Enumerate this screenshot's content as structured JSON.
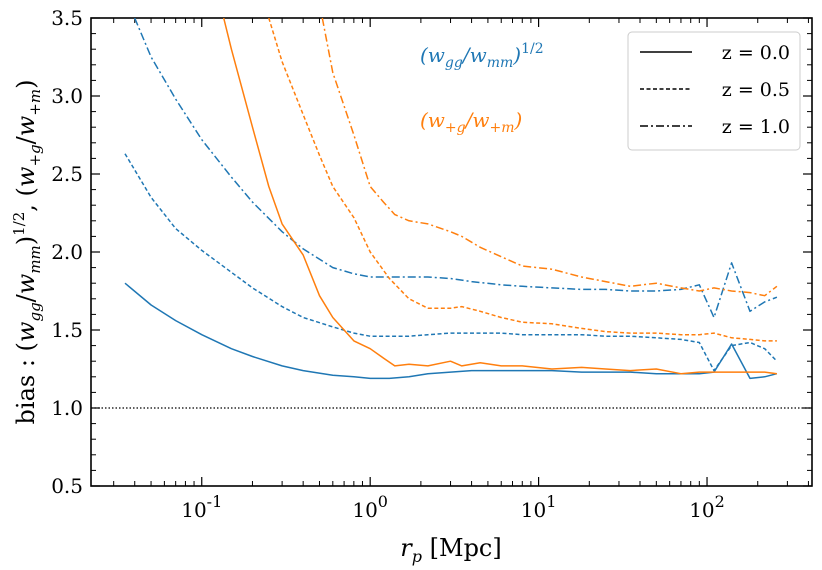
{
  "chart_data": {
    "type": "line",
    "title": "",
    "xlabel": "r_p [Mpc]",
    "ylabel": "bias : (w_gg/w_mm)^1/2 ,  (w_+g/w_+m)",
    "xscale": "log",
    "xlim": [
      0.022,
      420
    ],
    "ylim": [
      0.5,
      3.5
    ],
    "xticks": [
      {
        "value": 0.1,
        "label": "10^-1"
      },
      {
        "value": 1,
        "label": "10^0"
      },
      {
        "value": 10,
        "label": "10^1"
      },
      {
        "value": 100,
        "label": "10^2"
      }
    ],
    "yticks": [
      {
        "value": 0.5,
        "label": "0.5"
      },
      {
        "value": 1.0,
        "label": "1.0"
      },
      {
        "value": 1.5,
        "label": "1.5"
      },
      {
        "value": 2.0,
        "label": "2.0"
      },
      {
        "value": 2.5,
        "label": "2.5"
      },
      {
        "value": 3.0,
        "label": "3.0"
      },
      {
        "value": 3.5,
        "label": "3.5"
      }
    ],
    "reference_line": {
      "y": 1.0,
      "style": "dotted",
      "color": "#000000"
    },
    "annotations": [
      {
        "text": "(w_gg/w_mm)^1/2",
        "color": "#1f77b4"
      },
      {
        "text": "(w_+g/w_+m)",
        "color": "#ff7f0e"
      }
    ],
    "legend": {
      "position": "top-right",
      "entries": [
        {
          "label": "z = 0.0",
          "style": "solid"
        },
        {
          "label": "z = 0.5",
          "style": "dashed"
        },
        {
          "label": "z = 1.0",
          "style": "dashdot"
        }
      ]
    },
    "series": [
      {
        "name": "w_gg z=0.0",
        "color": "#1f77b4",
        "style": "solid",
        "x": [
          0.035,
          0.05,
          0.07,
          0.1,
          0.15,
          0.2,
          0.3,
          0.4,
          0.6,
          0.8,
          1.0,
          1.3,
          1.7,
          2.2,
          3.0,
          4.0,
          6.0,
          8.0,
          12,
          18,
          25,
          35,
          50,
          70,
          90,
          110,
          140,
          180,
          220,
          260
        ],
        "y": [
          1.8,
          1.66,
          1.56,
          1.47,
          1.38,
          1.33,
          1.27,
          1.24,
          1.21,
          1.2,
          1.19,
          1.19,
          1.2,
          1.22,
          1.23,
          1.24,
          1.24,
          1.24,
          1.24,
          1.23,
          1.23,
          1.23,
          1.22,
          1.22,
          1.22,
          1.23,
          1.41,
          1.19,
          1.2,
          1.22
        ]
      },
      {
        "name": "w_gg z=0.5",
        "color": "#1f77b4",
        "style": "dashed",
        "x": [
          0.035,
          0.05,
          0.07,
          0.1,
          0.15,
          0.2,
          0.3,
          0.4,
          0.6,
          0.8,
          1.0,
          1.3,
          1.7,
          2.2,
          3.0,
          4.0,
          6.0,
          8.0,
          12,
          18,
          25,
          35,
          50,
          70,
          90,
          110,
          140,
          180,
          220,
          260
        ],
        "y": [
          2.63,
          2.35,
          2.15,
          2.01,
          1.87,
          1.77,
          1.65,
          1.58,
          1.52,
          1.48,
          1.46,
          1.46,
          1.46,
          1.47,
          1.48,
          1.48,
          1.48,
          1.47,
          1.47,
          1.47,
          1.46,
          1.46,
          1.45,
          1.44,
          1.42,
          1.24,
          1.4,
          1.42,
          1.38,
          1.3
        ]
      },
      {
        "name": "w_gg z=1.0",
        "color": "#1f77b4",
        "style": "dashdot",
        "x": [
          0.04,
          0.05,
          0.07,
          0.1,
          0.15,
          0.2,
          0.3,
          0.4,
          0.6,
          0.8,
          1.0,
          1.3,
          1.7,
          2.2,
          3.0,
          4.0,
          6.0,
          8.0,
          12,
          18,
          25,
          35,
          50,
          70,
          90,
          110,
          140,
          180,
          220,
          260
        ],
        "y": [
          3.5,
          3.25,
          2.98,
          2.72,
          2.48,
          2.32,
          2.13,
          2.02,
          1.9,
          1.86,
          1.84,
          1.84,
          1.84,
          1.84,
          1.83,
          1.81,
          1.79,
          1.78,
          1.77,
          1.76,
          1.76,
          1.75,
          1.75,
          1.76,
          1.79,
          1.58,
          1.93,
          1.62,
          1.68,
          1.71
        ]
      },
      {
        "name": "w_+g z=0.0",
        "color": "#ff7f0e",
        "style": "solid",
        "x": [
          0.135,
          0.15,
          0.2,
          0.25,
          0.3,
          0.4,
          0.5,
          0.6,
          0.8,
          1.0,
          1.2,
          1.4,
          1.7,
          2.2,
          3.0,
          3.5,
          4.5,
          6.0,
          8.0,
          12,
          18,
          25,
          35,
          50,
          70,
          90,
          110,
          140,
          180,
          220,
          260
        ],
        "y": [
          3.5,
          3.3,
          2.8,
          2.42,
          2.18,
          1.98,
          1.72,
          1.58,
          1.43,
          1.38,
          1.32,
          1.27,
          1.28,
          1.27,
          1.3,
          1.27,
          1.29,
          1.27,
          1.27,
          1.25,
          1.26,
          1.25,
          1.24,
          1.25,
          1.22,
          1.23,
          1.23,
          1.23,
          1.23,
          1.23,
          1.22
        ]
      },
      {
        "name": "w_+g z=0.5",
        "color": "#ff7f0e",
        "style": "dashed",
        "x": [
          0.25,
          0.3,
          0.4,
          0.5,
          0.6,
          0.8,
          1.0,
          1.3,
          1.7,
          2.2,
          3.0,
          3.5,
          4.5,
          6.0,
          8.0,
          12,
          18,
          25,
          35,
          50,
          70,
          90,
          110,
          140,
          180,
          220,
          260
        ],
        "y": [
          3.5,
          3.22,
          2.88,
          2.62,
          2.42,
          2.22,
          2.0,
          1.83,
          1.7,
          1.64,
          1.64,
          1.65,
          1.62,
          1.58,
          1.55,
          1.54,
          1.51,
          1.49,
          1.48,
          1.48,
          1.47,
          1.47,
          1.48,
          1.45,
          1.44,
          1.43,
          1.43
        ]
      },
      {
        "name": "w_+g z=1.0",
        "color": "#ff7f0e",
        "style": "dashdot",
        "x": [
          0.52,
          0.6,
          0.8,
          1.0,
          1.2,
          1.4,
          1.7,
          2.2,
          3.0,
          3.5,
          4.5,
          6.0,
          8.0,
          12,
          18,
          25,
          35,
          50,
          70,
          90,
          110,
          140,
          180,
          220,
          260
        ],
        "y": [
          3.5,
          3.15,
          2.75,
          2.42,
          2.32,
          2.24,
          2.2,
          2.18,
          2.13,
          2.1,
          2.03,
          1.97,
          1.91,
          1.89,
          1.84,
          1.81,
          1.78,
          1.8,
          1.77,
          1.75,
          1.77,
          1.75,
          1.74,
          1.72,
          1.78
        ]
      }
    ]
  }
}
